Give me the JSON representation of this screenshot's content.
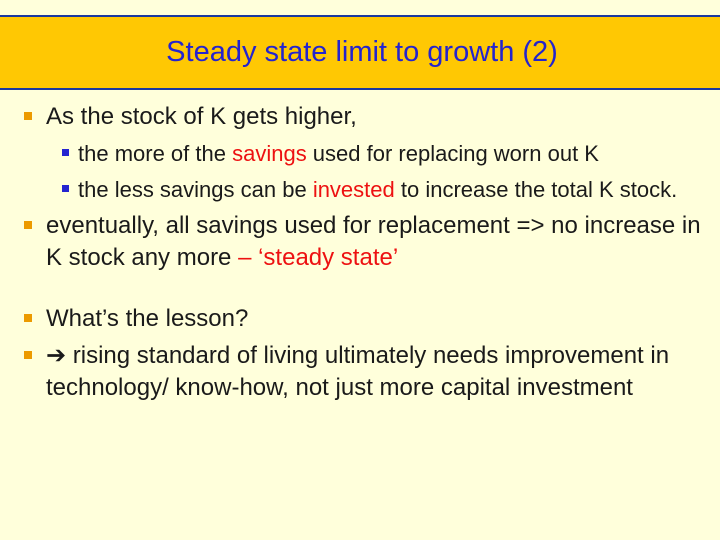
{
  "slide": {
    "title": "Steady state limit to growth (2)",
    "colors": {
      "background": "#FFFFDB",
      "title_bar_bg": "#FFC803",
      "title_bar_border": "#1A38A0",
      "title_text": "#2424CE",
      "body_text": "#1A1A1A",
      "highlight_red": "#ED1111",
      "bullet_level1": "#EC9A00",
      "bullet_level2": "#2424D0"
    },
    "icons": {
      "bullet_level1": "square-bullet-icon",
      "bullet_level2": "square-bullet-icon",
      "arrow": "➔"
    },
    "bullets": {
      "0": {
        "level": 1,
        "segments": {
          "0": {
            "text": "As the stock of K gets higher,"
          }
        }
      },
      "1": {
        "level": 2,
        "segments": {
          "0": {
            "text": "the more of the "
          },
          "1": {
            "text": "savings",
            "color": "red"
          },
          "2": {
            "text": " used for replacing worn out K"
          }
        }
      },
      "2": {
        "level": 2,
        "segments": {
          "0": {
            "text": "the less savings can be "
          },
          "1": {
            "text": "invested",
            "color": "red"
          },
          "2": {
            "text": " to increase the total K stock."
          }
        }
      },
      "3": {
        "level": 1,
        "segments": {
          "0": {
            "text": "eventually, all savings used for replacement => no increase in K stock any more "
          },
          "1": {
            "text": "– ‘steady state’",
            "color": "red"
          }
        }
      },
      "4": {
        "level": 1,
        "segments": {
          "0": {
            "text": "What’s the lesson?"
          }
        }
      },
      "5": {
        "level": 1,
        "segments": {
          "0": {
            "text": "➔",
            "icon": "arrow-right-icon"
          },
          "1": {
            "text": " rising standard of living ultimately needs improvement in technology/ know-how, not just more capital investment"
          }
        }
      }
    }
  }
}
